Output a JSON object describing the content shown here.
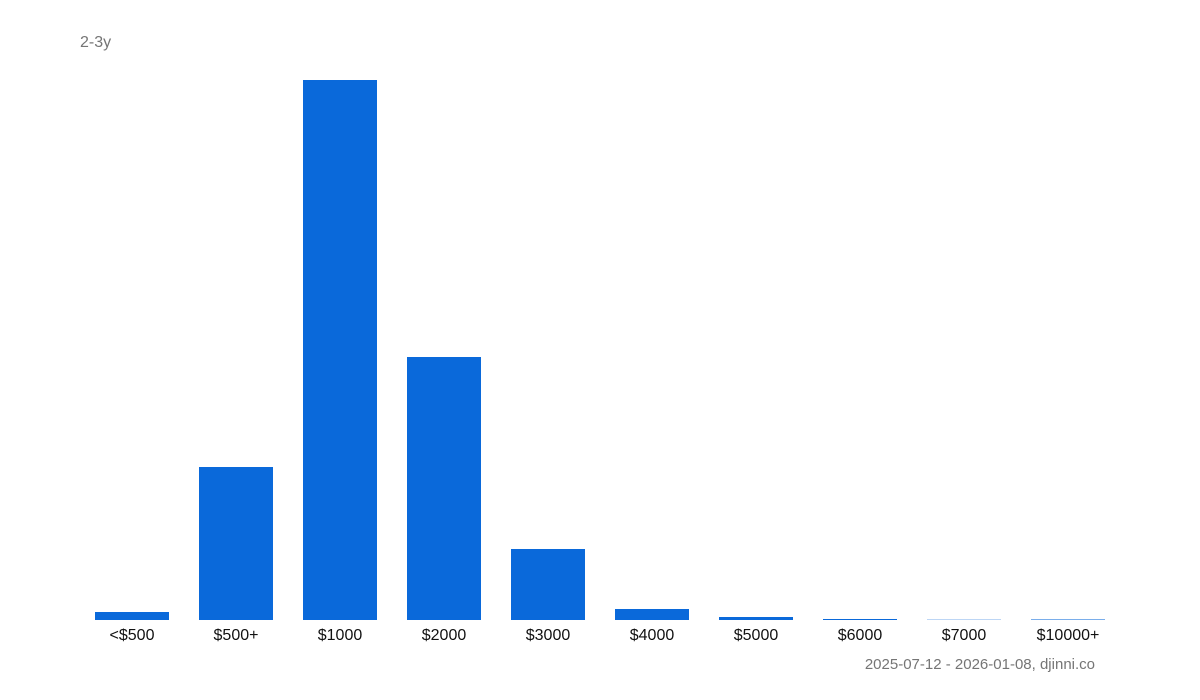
{
  "chart": {
    "title": "2-3y",
    "footer": "2025-07-12 - 2026-01-08, djinni.co",
    "bar_color": "#0a69da"
  },
  "chart_data": {
    "type": "bar",
    "title": "2-3y",
    "subtitle": "",
    "xlabel": "",
    "ylabel": "",
    "categories": [
      "<$500",
      "$500+",
      "$1000",
      "$2000",
      "$3000",
      "$4000",
      "$5000",
      "$6000",
      "$7000",
      "$10000+"
    ],
    "values": [
      1.5,
      28.3,
      100,
      48.7,
      13.1,
      2.0,
      0.6,
      0.2,
      0.05,
      0.1
    ],
    "value_unit": "relative share (% of tallest bar, estimated from pixels)",
    "ylim": [
      0,
      100
    ],
    "grid": false,
    "y_axis_visible": false,
    "legend": null,
    "annotation": "2025-07-12 - 2026-01-08, djinni.co"
  }
}
